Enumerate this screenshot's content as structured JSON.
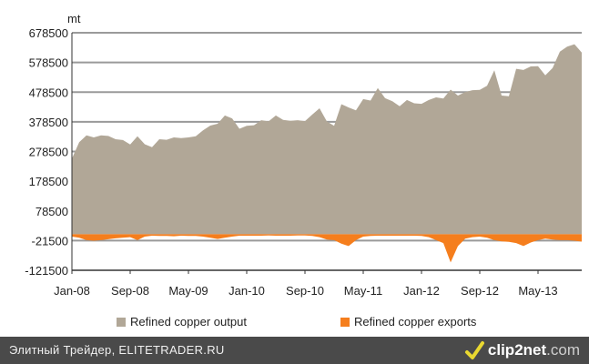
{
  "chart_data": {
    "type": "area",
    "unit": "mt",
    "y_ticks": [
      "678500",
      "578500",
      "478500",
      "378500",
      "278500",
      "178500",
      "78500",
      "-21500",
      "-121500"
    ],
    "ylim": [
      -121500,
      678500
    ],
    "x_ticks": [
      "Jan-08",
      "Sep-08",
      "May-09",
      "Jan-10",
      "Sep-10",
      "May-11",
      "Jan-12",
      "Sep-12",
      "May-13"
    ],
    "grid": true,
    "legend_position": "bottom",
    "series": [
      {
        "name": "Refined copper output",
        "color": "#b1a797",
        "values": [
          255000,
          310000,
          333000,
          326000,
          333000,
          331000,
          320000,
          317000,
          302000,
          330000,
          303000,
          293000,
          320000,
          318000,
          326000,
          324000,
          326000,
          330000,
          350000,
          366000,
          372000,
          400000,
          390000,
          355000,
          365000,
          367000,
          384000,
          380000,
          400000,
          385000,
          382000,
          384000,
          381000,
          403000,
          424000,
          380000,
          365000,
          438000,
          427000,
          417000,
          455000,
          450000,
          492000,
          458000,
          448000,
          431000,
          452000,
          441000,
          439000,
          452000,
          461000,
          457000,
          487000,
          467000,
          479000,
          485000,
          486000,
          500000,
          552000,
          467000,
          465000,
          557000,
          553000,
          565000,
          566000,
          535000,
          560000,
          615000,
          632000,
          640000,
          612000
        ]
      },
      {
        "name": "Refined copper exports",
        "color": "#f57e1d",
        "values": [
          -8000,
          -12000,
          -20000,
          -22000,
          -20000,
          -17000,
          -14000,
          -12000,
          -10000,
          -20000,
          -8000,
          -5000,
          -6000,
          -6000,
          -7000,
          -5000,
          -6000,
          -6000,
          -8000,
          -12000,
          -16000,
          -12000,
          -8000,
          -5000,
          -5000,
          -5000,
          -5000,
          -4000,
          -5000,
          -5000,
          -5000,
          -4000,
          -4000,
          -6000,
          -10000,
          -18000,
          -20000,
          -32000,
          -40000,
          -20000,
          -8000,
          -6000,
          -5000,
          -5000,
          -5000,
          -5000,
          -5000,
          -5000,
          -6000,
          -10000,
          -20000,
          -30000,
          -95000,
          -40000,
          -15000,
          -10000,
          -8000,
          -12000,
          -20000,
          -24000,
          -26000,
          -30000,
          -40000,
          -28000,
          -20000,
          -15000,
          -18000,
          -20000,
          -20000,
          -22000,
          -25000
        ]
      }
    ]
  },
  "footer": {
    "caption": "Элитный Трейдер, ELITETRADER.RU",
    "brand_main": "clip2net",
    "brand_suffix": ".com",
    "brand_icon": "brand-logo-icon"
  }
}
